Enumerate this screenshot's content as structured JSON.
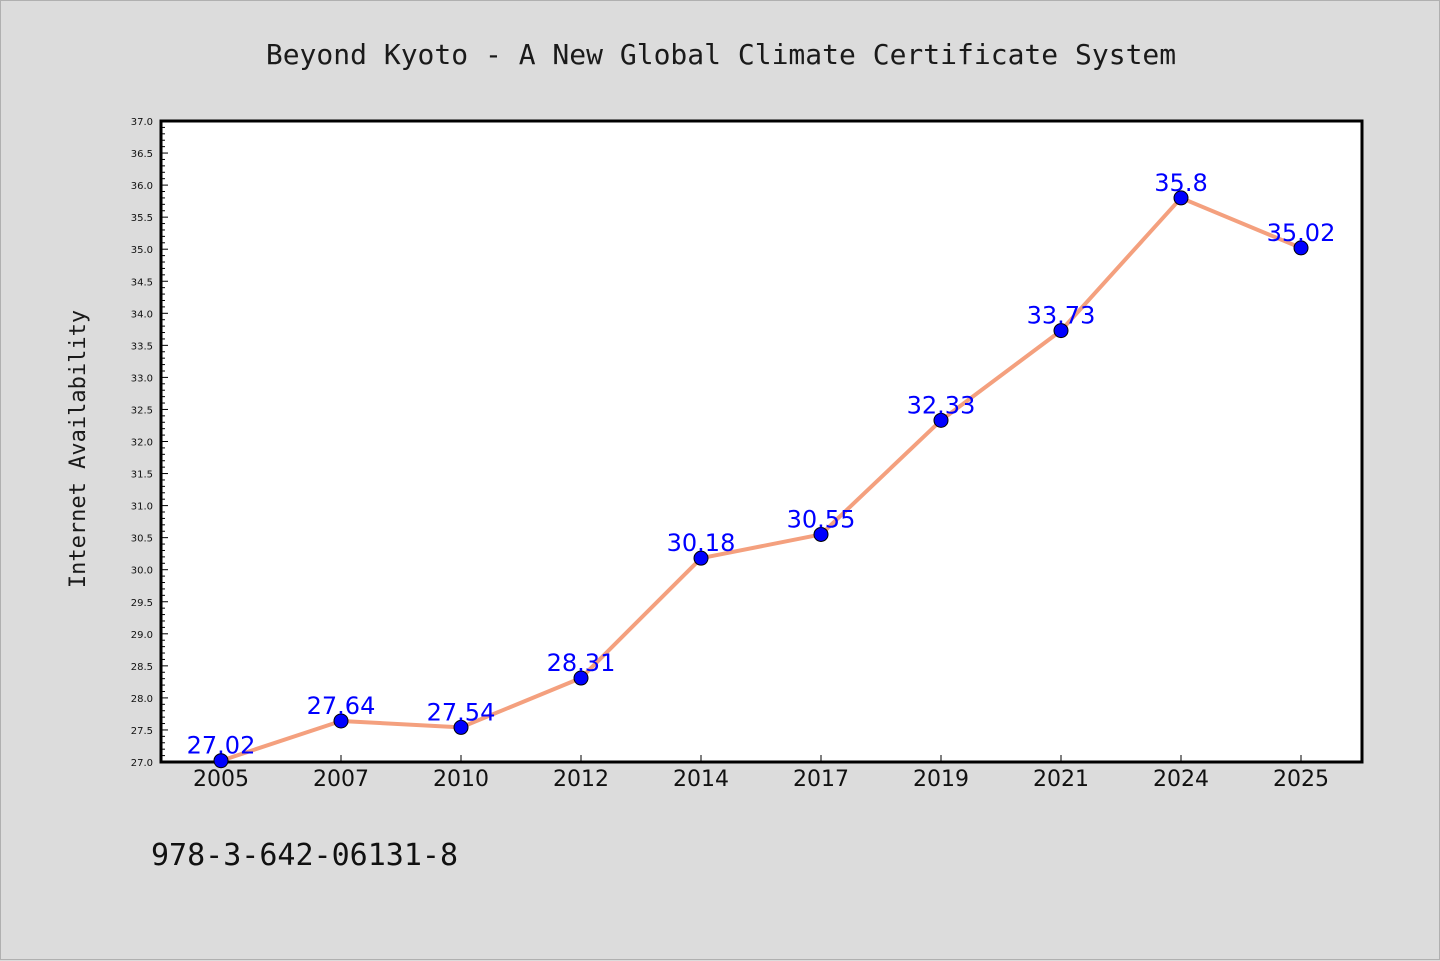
{
  "chart_data": {
    "type": "line",
    "title": "Beyond Kyoto - A New Global Climate Certificate System",
    "xlabel": "",
    "ylabel": "Internet Availability",
    "categories": [
      "2005",
      "2007",
      "2010",
      "2012",
      "2014",
      "2017",
      "2019",
      "2021",
      "2024",
      "2025"
    ],
    "series": [
      {
        "values": [
          27.02,
          27.64,
          27.54,
          28.31,
          30.18,
          30.55,
          32.33,
          33.73,
          35.8,
          35.02
        ],
        "labels": [
          "27.02",
          "27.64",
          "27.54",
          "28.31",
          "30.18",
          "30.55",
          "32.33",
          "33.73",
          "35.8",
          "35.02"
        ]
      }
    ],
    "ylim": [
      27.0,
      37.0
    ],
    "ytick_step": 0.5,
    "grid": false,
    "legend": "none",
    "colors": {
      "line": "#f4a07e",
      "marker": "#0000ff",
      "data_label": "#0000ff",
      "plot_bg": "#ffffff",
      "page_bg": "#dcdcdc"
    }
  },
  "footer": {
    "isbn": "978-3-642-06131-8"
  }
}
